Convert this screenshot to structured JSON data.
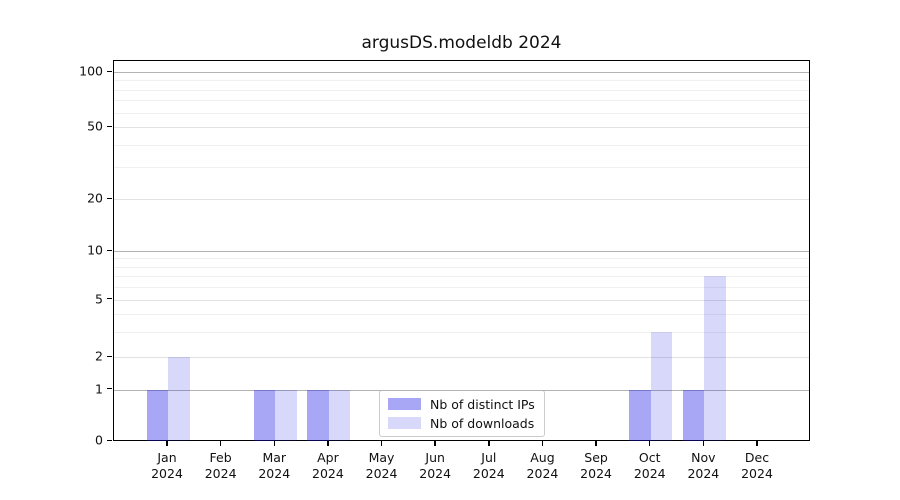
{
  "title": "argusDS.modeldb 2024",
  "legend": {
    "items": [
      {
        "label": "Nb of distinct IPs",
        "color": "rgba(15,15,230,0.37)"
      },
      {
        "label": "Nb of downloads",
        "color": "rgba(15,15,230,0.16)"
      }
    ]
  },
  "axes": {
    "y_tick_labels": [
      "0",
      "1",
      "2",
      "5",
      "10",
      "20",
      "50",
      "100"
    ],
    "year_label": "2024"
  },
  "chart_data": {
    "type": "bar",
    "title": "argusDS.modeldb 2024",
    "categories": [
      "Jan",
      "Feb",
      "Mar",
      "Apr",
      "May",
      "Jun",
      "Jul",
      "Aug",
      "Sep",
      "Oct",
      "Nov",
      "Dec"
    ],
    "x_sublabel": "2024",
    "series": [
      {
        "name": "Nb of distinct IPs",
        "color": "rgba(15,15,230,0.37)",
        "values": [
          1,
          0,
          1,
          1,
          0,
          0,
          0,
          0,
          0,
          1,
          1,
          0
        ]
      },
      {
        "name": "Nb of downloads",
        "color": "rgba(15,15,230,0.16)",
        "values": [
          2,
          0,
          1,
          1,
          0,
          0,
          0,
          0,
          0,
          3,
          7,
          0
        ]
      }
    ],
    "xlabel": "",
    "ylabel": "",
    "yscale": "symlog",
    "y_ticks": [
      0,
      1,
      2,
      5,
      10,
      20,
      50,
      100
    ],
    "y_major_gridlines": [
      1,
      10,
      100
    ],
    "y_minor_gridlines": [
      3,
      4,
      6,
      7,
      8,
      9,
      30,
      40,
      60,
      70,
      80,
      90
    ],
    "ylim": [
      0,
      140
    ],
    "grid": true,
    "legend_position": "lower center"
  }
}
